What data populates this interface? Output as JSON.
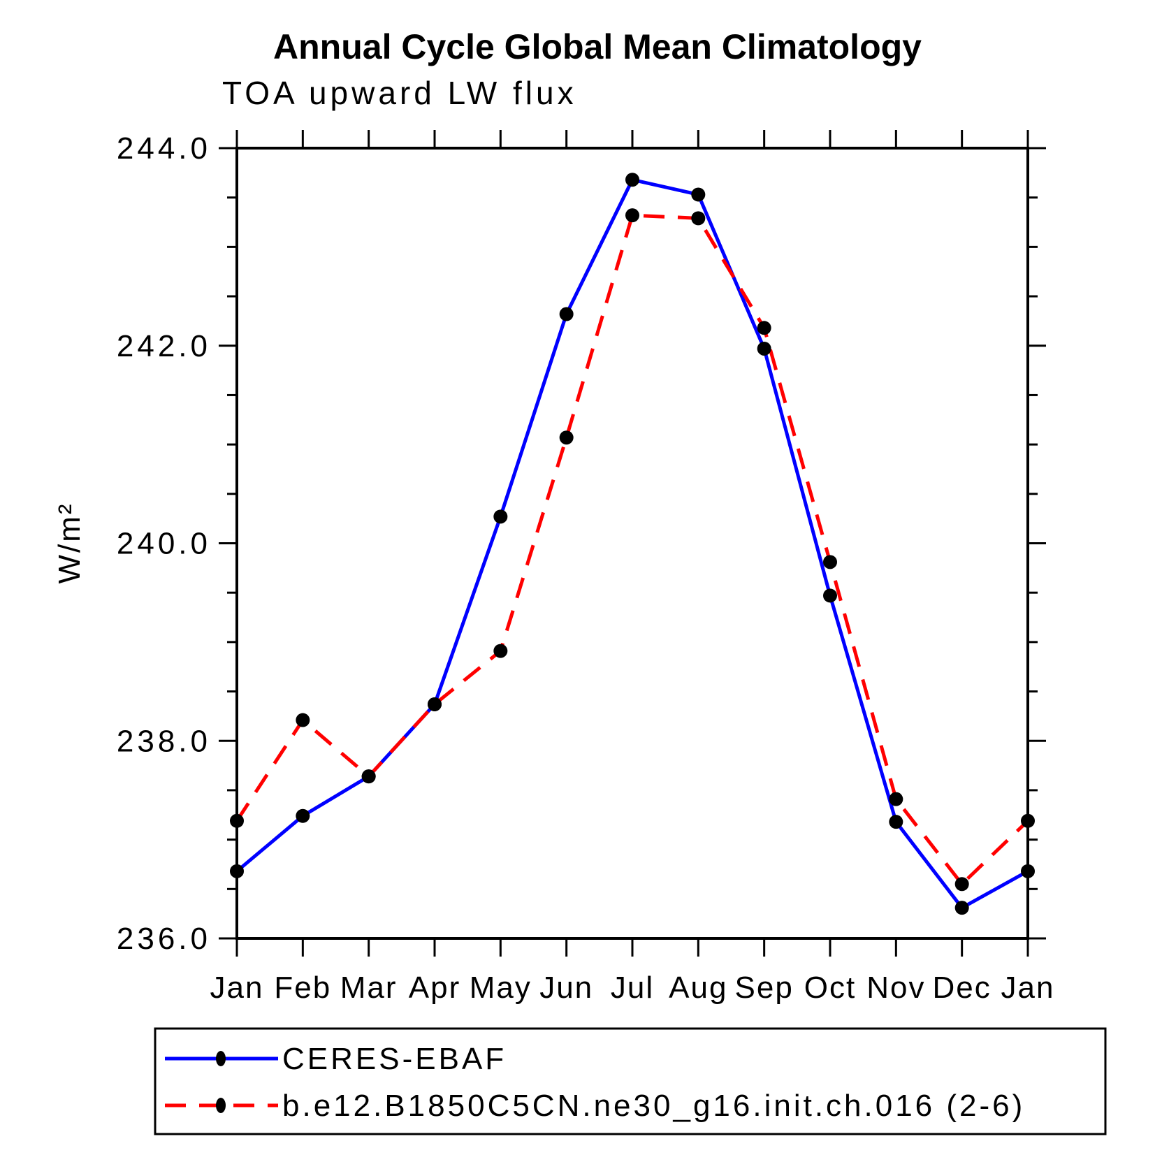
{
  "header": {
    "title": "Annual Cycle Global Mean Climatology",
    "subtitle": "TOA upward LW flux"
  },
  "chart_data": {
    "type": "line",
    "title": "Annual Cycle Global Mean Climatology",
    "subtitle": "TOA upward LW flux",
    "xlabel": "",
    "ylabel": "W/m²",
    "x_categories": [
      "Jan",
      "Feb",
      "Mar",
      "Apr",
      "May",
      "Jun",
      "Jul",
      "Aug",
      "Sep",
      "Oct",
      "Nov",
      "Dec",
      "Jan"
    ],
    "ylim": [
      236.0,
      244.0
    ],
    "ytick_major": [
      244.0,
      242.0,
      240.0,
      238.0,
      236.0
    ],
    "ytick_minor_interval": 0.5,
    "grid": false,
    "legend_position": "bottom",
    "frame_color": "#000000",
    "series": [
      {
        "name": "CERES-EBAF",
        "color": "#0000ff",
        "line_style": "solid",
        "marker": "filled-circle",
        "marker_color": "#000000",
        "values": [
          236.68,
          237.24,
          237.64,
          238.37,
          240.27,
          242.32,
          243.68,
          243.53,
          241.97,
          239.47,
          237.18,
          236.31,
          236.68
        ]
      },
      {
        "name": "b.e12.B1850C5CN.ne30_g16.init.ch.016 (2-6)",
        "color": "#ff0000",
        "line_style": "dashed",
        "marker": "filled-circle",
        "marker_color": "#000000",
        "values": [
          237.19,
          238.21,
          237.64,
          238.37,
          238.91,
          241.07,
          243.32,
          243.29,
          242.18,
          239.81,
          237.41,
          236.55,
          237.19
        ]
      }
    ]
  }
}
